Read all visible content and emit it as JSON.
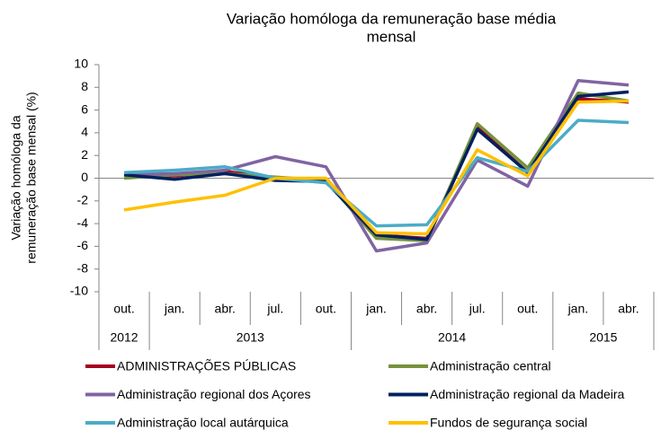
{
  "chart_data": {
    "type": "line",
    "title": [
      "Variação homóloga da remuneração base média",
      "mensal"
    ],
    "y_label": [
      "Variação homóloga da",
      "remuneração base mensal (%)"
    ],
    "groups": [
      {
        "label": "2012",
        "categories": [
          "out."
        ]
      },
      {
        "label": "2013",
        "categories": [
          "jan.",
          "abr.",
          "jul.",
          "out."
        ]
      },
      {
        "label": "2014",
        "categories": [
          "jan.",
          "abr.",
          "jul.",
          "out."
        ]
      },
      {
        "label": "2015",
        "categories": [
          "jan.",
          "abr."
        ]
      }
    ],
    "ylim": [
      -10,
      10
    ],
    "yticks": [
      -10,
      -8,
      -6,
      -4,
      -2,
      0,
      2,
      4,
      6,
      8,
      10
    ],
    "grid": false,
    "legend": "bottom",
    "series": [
      {
        "name": "ADMINISTRAÇÕES PÚBLICAS",
        "color": "#a50021",
        "values": [
          0.3,
          0.2,
          0.6,
          0.0,
          -0.2,
          -5.0,
          -5.3,
          4.5,
          0.5,
          7.0,
          6.7
        ]
      },
      {
        "name": "Administração central",
        "color": "#76923c",
        "values": [
          0.0,
          0.3,
          0.4,
          0.1,
          -0.2,
          -5.3,
          -5.5,
          4.8,
          0.9,
          7.5,
          6.8
        ]
      },
      {
        "name": "Administração regional dos Açores",
        "color": "#8064a2",
        "values": [
          0.3,
          0.4,
          0.7,
          1.9,
          1.0,
          -6.4,
          -5.7,
          1.6,
          -0.7,
          8.6,
          8.2
        ]
      },
      {
        "name": "Administração regional da Madeira",
        "color": "#002060",
        "values": [
          0.3,
          -0.1,
          0.4,
          -0.2,
          -0.3,
          -5.0,
          -5.4,
          4.3,
          0.5,
          7.2,
          7.6
        ]
      },
      {
        "name": "Administração local autárquica",
        "color": "#4bacc6",
        "values": [
          0.5,
          0.7,
          1.0,
          0.0,
          -0.4,
          -4.2,
          -4.1,
          1.8,
          0.6,
          5.1,
          4.9
        ]
      },
      {
        "name": "Fundos de segurança social",
        "color": "#ffc000",
        "values": [
          -2.8,
          -2.1,
          -1.5,
          0.0,
          0.0,
          -4.8,
          -4.9,
          2.5,
          0.2,
          6.7,
          6.8
        ]
      }
    ]
  }
}
